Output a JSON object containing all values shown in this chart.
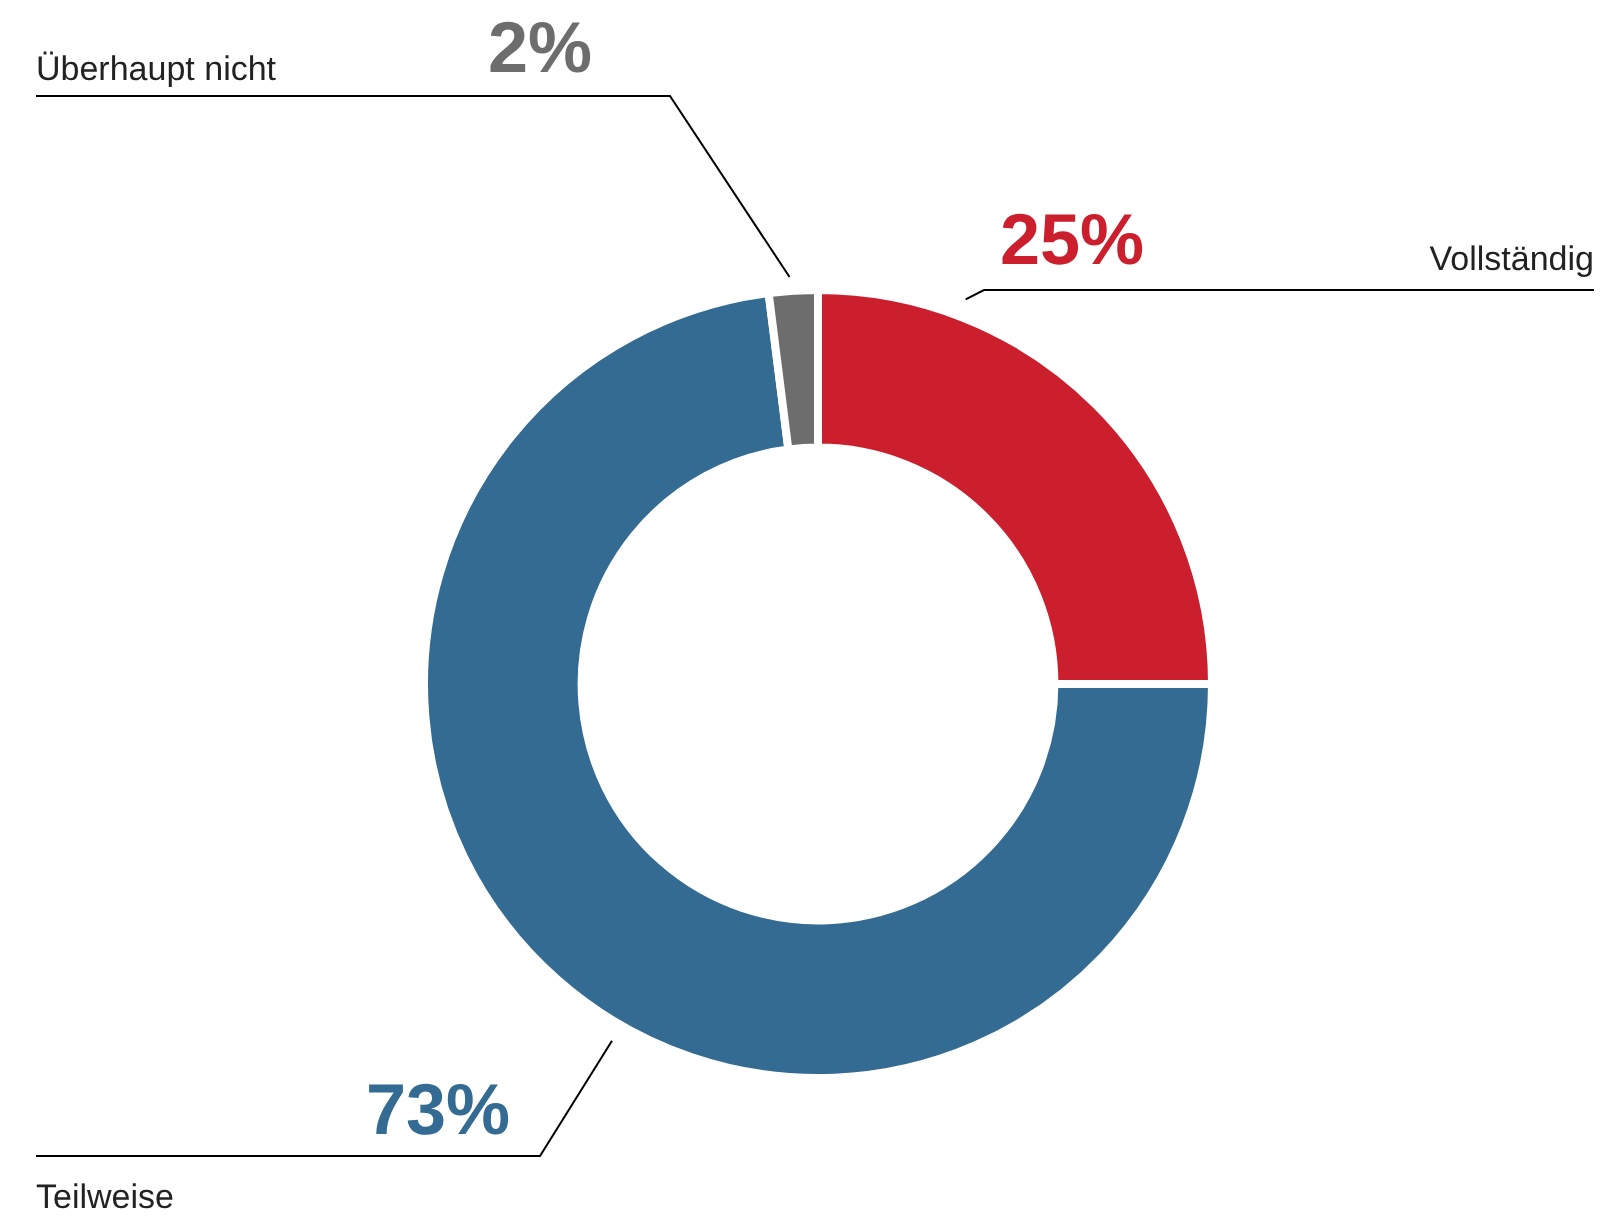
{
  "chart_data": {
    "type": "donut",
    "categories": [
      "Vollständig",
      "Teilweise",
      "Überhaupt nicht"
    ],
    "values": [
      25,
      73,
      2
    ],
    "colors": [
      "#cc1f2d",
      "#346b92",
      "#6d6d6d"
    ],
    "value_labels": [
      "25%",
      "73%",
      "2%"
    ]
  }
}
